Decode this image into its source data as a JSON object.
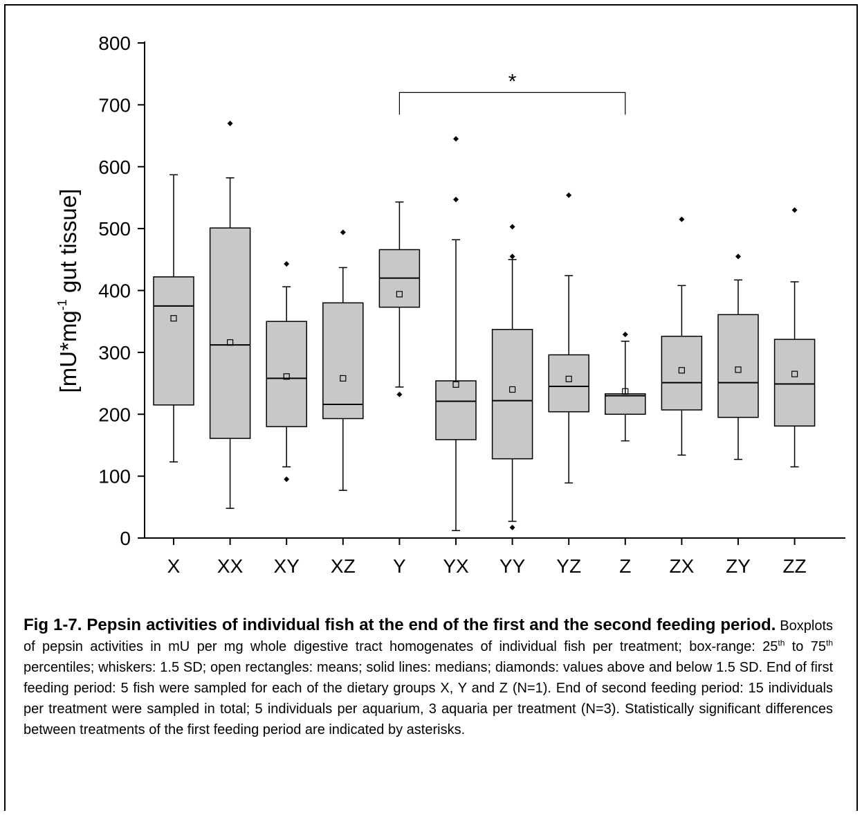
{
  "chart_data": {
    "type": "boxplot",
    "ylabel_main": "[mU*mg",
    "ylabel_sup": "-1",
    "ylabel_rest": " gut tissue]",
    "xlabel": "",
    "ylim": [
      0,
      800
    ],
    "yticks": [
      0,
      100,
      200,
      300,
      400,
      500,
      600,
      700,
      800
    ],
    "categories": [
      "X",
      "XX",
      "XY",
      "XZ",
      "Y",
      "YX",
      "YY",
      "YZ",
      "Z",
      "ZX",
      "ZY",
      "ZZ"
    ],
    "boxes": [
      {
        "name": "X",
        "q1": 215,
        "median": 375,
        "q3": 422,
        "whisker_low": 123,
        "whisker_high": 587,
        "mean": 355,
        "outliers": []
      },
      {
        "name": "XX",
        "q1": 161,
        "median": 312,
        "q3": 501,
        "whisker_low": 48,
        "whisker_high": 582,
        "mean": 316,
        "outliers": [
          670
        ]
      },
      {
        "name": "XY",
        "q1": 180,
        "median": 258,
        "q3": 350,
        "whisker_low": 115,
        "whisker_high": 406,
        "mean": 261,
        "outliers": [
          443,
          95
        ]
      },
      {
        "name": "XZ",
        "q1": 193,
        "median": 216,
        "q3": 380,
        "whisker_low": 77,
        "whisker_high": 437,
        "mean": 258,
        "outliers": [
          494
        ]
      },
      {
        "name": "Y",
        "q1": 373,
        "median": 420,
        "q3": 466,
        "whisker_low": 244,
        "whisker_high": 543,
        "mean": 394,
        "outliers": [
          232
        ]
      },
      {
        "name": "YX",
        "q1": 159,
        "median": 221,
        "q3": 254,
        "whisker_low": 12,
        "whisker_high": 482,
        "mean": 248,
        "outliers": [
          645,
          547
        ]
      },
      {
        "name": "YY",
        "q1": 128,
        "median": 222,
        "q3": 337,
        "whisker_low": 27,
        "whisker_high": 450,
        "mean": 240,
        "outliers": [
          503,
          455,
          17
        ]
      },
      {
        "name": "YZ",
        "q1": 204,
        "median": 245,
        "q3": 296,
        "whisker_low": 89,
        "whisker_high": 424,
        "mean": 257,
        "outliers": [
          554
        ]
      },
      {
        "name": "Z",
        "q1": 200,
        "median": 230,
        "q3": 233,
        "whisker_low": 157,
        "whisker_high": 318,
        "mean": 237,
        "outliers": [
          329
        ]
      },
      {
        "name": "ZX",
        "q1": 207,
        "median": 251,
        "q3": 326,
        "whisker_low": 134,
        "whisker_high": 408,
        "mean": 271,
        "outliers": [
          515
        ]
      },
      {
        "name": "ZY",
        "q1": 195,
        "median": 251,
        "q3": 361,
        "whisker_low": 127,
        "whisker_high": 417,
        "mean": 272,
        "outliers": [
          455
        ]
      },
      {
        "name": "ZZ",
        "q1": 181,
        "median": 249,
        "q3": 321,
        "whisker_low": 115,
        "whisker_high": 414,
        "mean": 265,
        "outliers": [
          530
        ]
      }
    ],
    "significance": {
      "from": "Y",
      "to": "Z",
      "y": 720,
      "label": "*"
    },
    "grid": false,
    "box_fill": "#c8c8c8"
  },
  "caption": {
    "lead": "Fig 1-7. Pepsin activities of individual fish at the end of the first and the second feeding period.",
    "part1": " Boxplots of pepsin activities in mU per mg whole digestive tract homogenates of individual fish per treatment; box-range: 25",
    "sup1": "th",
    "part2": " to 75",
    "sup2": "th",
    "part3": " percentiles; whiskers: 1.5 SD; open rectangles: means; solid lines: medians; diamonds: values above and below 1.5 SD. End of first feeding period:  5 fish were sampled for each of the dietary groups X, Y and Z (N=1). End of second feeding period: 15 individuals per treatment were sampled in total; 5 individuals per aquarium, 3 aquaria per treatment (N=3). Statistically significant differences between treatments of the first feeding period are indicated by asterisks."
  }
}
